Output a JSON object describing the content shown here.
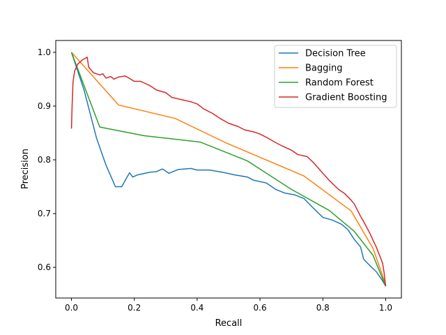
{
  "chart_data": {
    "type": "line",
    "title": "",
    "xlabel": "Recall",
    "ylabel": "Precision",
    "xlim": [
      -0.05,
      1.05
    ],
    "ylim": [
      0.543,
      1.022
    ],
    "xticks": [
      "0.0",
      "0.2",
      "0.4",
      "0.6",
      "0.8",
      "1.0"
    ],
    "yticks": [
      "0.6",
      "0.7",
      "0.8",
      "0.9",
      "1.0"
    ],
    "grid": false,
    "legend_position": "top-right",
    "series": [
      {
        "name": "Decision Tree",
        "color": "#1f77b4",
        "points": [
          [
            0.0,
            1.0
          ],
          [
            0.04,
            0.93
          ],
          [
            0.08,
            0.84
          ],
          [
            0.11,
            0.79
          ],
          [
            0.14,
            0.75
          ],
          [
            0.16,
            0.75
          ],
          [
            0.175,
            0.766
          ],
          [
            0.185,
            0.776
          ],
          [
            0.195,
            0.768
          ],
          [
            0.21,
            0.772
          ],
          [
            0.25,
            0.777
          ],
          [
            0.27,
            0.778
          ],
          [
            0.29,
            0.783
          ],
          [
            0.31,
            0.775
          ],
          [
            0.34,
            0.782
          ],
          [
            0.38,
            0.784
          ],
          [
            0.4,
            0.781
          ],
          [
            0.44,
            0.781
          ],
          [
            0.48,
            0.777
          ],
          [
            0.52,
            0.772
          ],
          [
            0.56,
            0.768
          ],
          [
            0.58,
            0.762
          ],
          [
            0.62,
            0.757
          ],
          [
            0.65,
            0.745
          ],
          [
            0.68,
            0.738
          ],
          [
            0.71,
            0.735
          ],
          [
            0.74,
            0.728
          ],
          [
            0.77,
            0.71
          ],
          [
            0.8,
            0.693
          ],
          [
            0.83,
            0.688
          ],
          [
            0.86,
            0.68
          ],
          [
            0.88,
            0.67
          ],
          [
            0.9,
            0.652
          ],
          [
            0.92,
            0.638
          ],
          [
            0.93,
            0.615
          ],
          [
            0.95,
            0.603
          ],
          [
            0.97,
            0.592
          ],
          [
            0.99,
            0.575
          ],
          [
            1.0,
            0.565
          ]
        ]
      },
      {
        "name": "Bagging",
        "color": "#ff7f0e",
        "points": [
          [
            0.0,
            1.0
          ],
          [
            0.15,
            0.902
          ],
          [
            0.33,
            0.877
          ],
          [
            0.49,
            0.832
          ],
          [
            0.74,
            0.77
          ],
          [
            0.89,
            0.705
          ],
          [
            0.96,
            0.635
          ],
          [
            1.0,
            0.568
          ]
        ]
      },
      {
        "name": "Random Forest",
        "color": "#2ca02c",
        "points": [
          [
            0.0,
            1.0
          ],
          [
            0.09,
            0.861
          ],
          [
            0.23,
            0.845
          ],
          [
            0.41,
            0.833
          ],
          [
            0.56,
            0.798
          ],
          [
            0.7,
            0.745
          ],
          [
            0.82,
            0.706
          ],
          [
            0.9,
            0.667
          ],
          [
            0.96,
            0.622
          ],
          [
            1.0,
            0.565
          ]
        ]
      },
      {
        "name": "Gradient Boosting",
        "color": "#d62728",
        "points": [
          [
            0.0,
            0.858
          ],
          [
            0.002,
            0.9
          ],
          [
            0.005,
            0.945
          ],
          [
            0.01,
            0.965
          ],
          [
            0.02,
            0.978
          ],
          [
            0.035,
            0.986
          ],
          [
            0.05,
            0.991
          ],
          [
            0.055,
            0.972
          ],
          [
            0.07,
            0.962
          ],
          [
            0.09,
            0.958
          ],
          [
            0.1,
            0.96
          ],
          [
            0.11,
            0.952
          ],
          [
            0.125,
            0.955
          ],
          [
            0.135,
            0.95
          ],
          [
            0.15,
            0.954
          ],
          [
            0.17,
            0.956
          ],
          [
            0.18,
            0.953
          ],
          [
            0.2,
            0.946
          ],
          [
            0.22,
            0.946
          ],
          [
            0.235,
            0.942
          ],
          [
            0.25,
            0.938
          ],
          [
            0.27,
            0.93
          ],
          [
            0.3,
            0.925
          ],
          [
            0.32,
            0.916
          ],
          [
            0.35,
            0.912
          ],
          [
            0.38,
            0.908
          ],
          [
            0.4,
            0.904
          ],
          [
            0.42,
            0.895
          ],
          [
            0.45,
            0.886
          ],
          [
            0.47,
            0.878
          ],
          [
            0.5,
            0.868
          ],
          [
            0.53,
            0.862
          ],
          [
            0.55,
            0.856
          ],
          [
            0.58,
            0.852
          ],
          [
            0.6,
            0.848
          ],
          [
            0.62,
            0.842
          ],
          [
            0.65,
            0.832
          ],
          [
            0.67,
            0.826
          ],
          [
            0.7,
            0.818
          ],
          [
            0.72,
            0.81
          ],
          [
            0.75,
            0.806
          ],
          [
            0.77,
            0.795
          ],
          [
            0.8,
            0.775
          ],
          [
            0.82,
            0.762
          ],
          [
            0.85,
            0.745
          ],
          [
            0.87,
            0.737
          ],
          [
            0.89,
            0.725
          ],
          [
            0.9,
            0.718
          ],
          [
            0.92,
            0.695
          ],
          [
            0.93,
            0.685
          ],
          [
            0.95,
            0.663
          ],
          [
            0.96,
            0.65
          ],
          [
            0.97,
            0.638
          ],
          [
            0.98,
            0.623
          ],
          [
            0.99,
            0.608
          ],
          [
            0.995,
            0.59
          ],
          [
            1.0,
            0.565
          ]
        ]
      }
    ]
  }
}
